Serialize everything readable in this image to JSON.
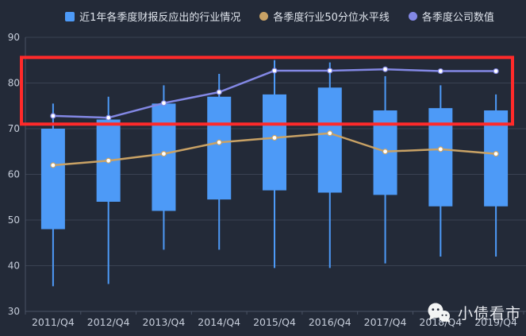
{
  "legend": {
    "items": [
      {
        "label": "近1年各季度财报反应出的行业情况",
        "marker": "square",
        "color": "#4d9af7"
      },
      {
        "label": "各季度行业50分位水平线",
        "marker": "circle",
        "color": "#c9a265"
      },
      {
        "label": "各季度公司数值",
        "marker": "circle",
        "color": "#8388e5"
      }
    ]
  },
  "watermark": {
    "text": "小债看市",
    "icon": "wechat-icon"
  },
  "colors": {
    "background": "#232a38",
    "grid": "#3a4252",
    "axis": "#4a5365",
    "tick_text": "#c7cedb",
    "legend_text": "#dfe4ec",
    "box_blue": "#4d9af7",
    "median_orange": "#c9a265",
    "company_purple": "#8388e5",
    "annotation_red": "#ff2a2a",
    "marker_fill": "#ffffff"
  },
  "chart_data": {
    "type": "candlestick+line",
    "title": "",
    "xlabel": "",
    "ylabel": "",
    "ylim": [
      30,
      90
    ],
    "yticks": [
      90,
      80,
      70,
      60,
      50,
      40,
      30
    ],
    "grid": true,
    "legend_position": "top",
    "categories": [
      "2011/Q4",
      "2012/Q4",
      "2013/Q4",
      "2014/Q4",
      "2015/Q4",
      "2016/Q4",
      "2017/Q4",
      "2018/Q4",
      "2019/Q4"
    ],
    "series": [
      {
        "name": "近1年各季度财报反应出的行业情况",
        "type": "candlestick",
        "color": "#4d9af7",
        "high": [
          75.5,
          77,
          79.5,
          82,
          85,
          84.5,
          81.5,
          79.5,
          77.5
        ],
        "box_top": [
          70,
          72,
          75.5,
          77,
          77.5,
          79,
          74,
          74.5,
          74
        ],
        "box_bottom": [
          48,
          54,
          52,
          54.5,
          56.5,
          56,
          55.5,
          53,
          53
        ],
        "low": [
          35.5,
          36,
          43.5,
          43.5,
          39.5,
          39.5,
          40.5,
          42,
          42
        ]
      },
      {
        "name": "各季度行业50分位水平线",
        "type": "line",
        "color": "#c9a265",
        "values": [
          62,
          63,
          64.5,
          67,
          68,
          69,
          65,
          65.5,
          64.5
        ]
      },
      {
        "name": "各季度公司数值",
        "type": "line",
        "color": "#8388e5",
        "values": [
          72.8,
          72.4,
          75.6,
          78,
          82.7,
          82.7,
          83,
          82.6,
          82.6
        ]
      }
    ],
    "annotation": {
      "shape": "rect",
      "color": "#ff2a2a",
      "value_top": 85.6,
      "value_bottom": 71,
      "note": "red highlight rectangle spanning full chart width over the 71-85.6 band"
    }
  }
}
